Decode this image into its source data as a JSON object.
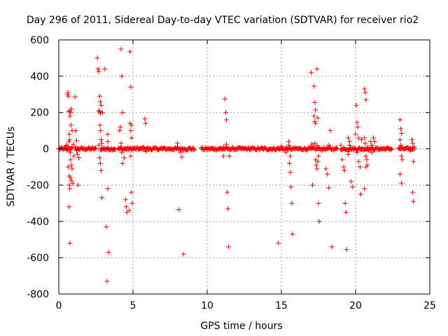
{
  "chart_data": {
    "type": "scatter",
    "title": "Day 296 of 2011, Sidereal Day-to-day VTEC variation (SDTVAR) for receiver rio2",
    "xlabel": "GPS time / hours",
    "ylabel": "SDTVAR / TECUs",
    "xlim": [
      0,
      25
    ],
    "ylim": [
      -800,
      600
    ],
    "xticks": [
      0,
      5,
      10,
      15,
      20,
      25
    ],
    "yticks": [
      -800,
      -600,
      -400,
      -200,
      0,
      200,
      400,
      600
    ],
    "grid": true,
    "marker": "+",
    "color": "#ff0000",
    "series": [
      {
        "name": "SDTVAR",
        "baseline_bands": [
          [
            0.0,
            0.9
          ],
          [
            1.1,
            2.5
          ],
          [
            2.8,
            3.8
          ],
          [
            4.0,
            6.0
          ],
          [
            6.0,
            9.2
          ],
          [
            9.6,
            12.5
          ],
          [
            12.5,
            16.8
          ],
          [
            16.8,
            18.8
          ],
          [
            19.0,
            20.5
          ],
          [
            20.5,
            22.5
          ],
          [
            22.9,
            24.0
          ]
        ],
        "points": [
          [
            0.5,
            20
          ],
          [
            0.6,
            300
          ],
          [
            0.62,
            310
          ],
          [
            0.65,
            290
          ],
          [
            0.7,
            205
          ],
          [
            0.72,
            210
          ],
          [
            0.75,
            180
          ],
          [
            0.8,
            200
          ],
          [
            0.82,
            130
          ],
          [
            0.85,
            220
          ],
          [
            0.9,
            100
          ],
          [
            0.7,
            80
          ],
          [
            0.75,
            50
          ],
          [
            0.78,
            -20
          ],
          [
            0.8,
            -60
          ],
          [
            0.85,
            -90
          ],
          [
            0.9,
            -110
          ],
          [
            0.65,
            -100
          ],
          [
            0.7,
            -150
          ],
          [
            0.72,
            -200
          ],
          [
            0.75,
            -220
          ],
          [
            0.8,
            -160
          ],
          [
            0.85,
            -175
          ],
          [
            0.95,
            -190
          ],
          [
            1.0,
            -40
          ],
          [
            0.7,
            -320
          ],
          [
            0.75,
            -520
          ],
          [
            0.55,
            -10
          ],
          [
            0.6,
            15
          ],
          [
            0.68,
            40
          ],
          [
            0.9,
            10
          ],
          [
            1.0,
            25
          ],
          [
            1.1,
            285
          ],
          [
            1.15,
            100
          ],
          [
            1.2,
            45
          ],
          [
            1.25,
            -30
          ],
          [
            1.3,
            -200
          ],
          [
            1.35,
            -50
          ],
          [
            1.2,
            -10
          ],
          [
            2.6,
            500
          ],
          [
            2.65,
            440
          ],
          [
            2.7,
            425
          ],
          [
            2.75,
            290
          ],
          [
            2.8,
            260
          ],
          [
            2.85,
            240
          ],
          [
            2.7,
            210
          ],
          [
            2.75,
            205
          ],
          [
            2.8,
            195
          ],
          [
            2.78,
            130
          ],
          [
            2.82,
            100
          ],
          [
            2.85,
            50
          ],
          [
            2.9,
            30
          ],
          [
            2.7,
            20
          ],
          [
            2.75,
            -50
          ],
          [
            2.8,
            -80
          ],
          [
            2.85,
            -120
          ],
          [
            2.9,
            -270
          ],
          [
            2.95,
            200
          ],
          [
            3.1,
            440
          ],
          [
            3.2,
            -430
          ],
          [
            3.25,
            -730
          ],
          [
            3.35,
            -570
          ],
          [
            3.3,
            -220
          ],
          [
            3.3,
            80
          ],
          [
            3.3,
            40
          ],
          [
            4.1,
            100
          ],
          [
            4.15,
            120
          ],
          [
            4.2,
            550
          ],
          [
            4.25,
            400
          ],
          [
            4.3,
            200
          ],
          [
            4.2,
            30
          ],
          [
            4.25,
            -20
          ],
          [
            4.3,
            -80
          ],
          [
            4.4,
            -50
          ],
          [
            4.5,
            -280
          ],
          [
            4.55,
            -320
          ],
          [
            4.6,
            -350
          ],
          [
            4.8,
            535
          ],
          [
            4.85,
            340
          ],
          [
            4.8,
            140
          ],
          [
            4.85,
            100
          ],
          [
            4.9,
            60
          ],
          [
            4.85,
            -40
          ],
          [
            4.9,
            -240
          ],
          [
            4.95,
            -300
          ],
          [
            4.75,
            -340
          ],
          [
            4.9,
            130
          ],
          [
            5.8,
            165
          ],
          [
            5.85,
            140
          ],
          [
            5.7,
            10
          ],
          [
            5.9,
            -15
          ],
          [
            8.0,
            30
          ],
          [
            8.1,
            -335
          ],
          [
            8.3,
            -45
          ],
          [
            8.4,
            -580
          ],
          [
            8.2,
            -20
          ],
          [
            11.1,
            -40
          ],
          [
            11.2,
            275
          ],
          [
            11.25,
            200
          ],
          [
            11.3,
            160
          ],
          [
            11.3,
            25
          ],
          [
            11.35,
            -240
          ],
          [
            11.4,
            -330
          ],
          [
            11.45,
            -540
          ],
          [
            11.5,
            -40
          ],
          [
            11.1,
            10
          ],
          [
            14.8,
            -520
          ],
          [
            15.0,
            15
          ],
          [
            15.3,
            -20
          ],
          [
            15.5,
            40
          ],
          [
            15.55,
            -80
          ],
          [
            15.6,
            -130
          ],
          [
            15.65,
            -210
          ],
          [
            15.7,
            -300
          ],
          [
            15.75,
            -470
          ],
          [
            15.5,
            20
          ],
          [
            15.6,
            -40
          ],
          [
            17.0,
            420
          ],
          [
            17.05,
            25
          ],
          [
            17.1,
            -200
          ],
          [
            17.2,
            345
          ],
          [
            17.25,
            255
          ],
          [
            17.3,
            215
          ],
          [
            17.2,
            180
          ],
          [
            17.25,
            150
          ],
          [
            17.3,
            140
          ],
          [
            17.25,
            30
          ],
          [
            17.3,
            -60
          ],
          [
            17.35,
            -90
          ],
          [
            17.4,
            -110
          ],
          [
            17.45,
            -70
          ],
          [
            17.4,
            440
          ],
          [
            17.45,
            170
          ],
          [
            17.5,
            -300
          ],
          [
            17.55,
            -400
          ],
          [
            17.4,
            20
          ],
          [
            17.5,
            -40
          ],
          [
            18.0,
            -110
          ],
          [
            18.1,
            -140
          ],
          [
            18.2,
            -215
          ],
          [
            18.3,
            100
          ],
          [
            18.4,
            -540
          ],
          [
            18.2,
            20
          ],
          [
            19.0,
            20
          ],
          [
            19.1,
            -60
          ],
          [
            19.2,
            -100
          ],
          [
            19.25,
            -120
          ],
          [
            19.3,
            -300
          ],
          [
            19.35,
            -350
          ],
          [
            19.4,
            -555
          ],
          [
            19.5,
            60
          ],
          [
            19.6,
            40
          ],
          [
            19.7,
            -180
          ],
          [
            19.8,
            -210
          ],
          [
            19.6,
            20
          ],
          [
            19.5,
            -30
          ],
          [
            20.0,
            80
          ],
          [
            20.05,
            240
          ],
          [
            20.1,
            145
          ],
          [
            20.15,
            120
          ],
          [
            20.2,
            60
          ],
          [
            20.1,
            -20
          ],
          [
            20.2,
            -70
          ],
          [
            20.3,
            -100
          ],
          [
            20.35,
            -250
          ],
          [
            20.4,
            50
          ],
          [
            20.6,
            330
          ],
          [
            20.65,
            310
          ],
          [
            20.7,
            270
          ],
          [
            20.6,
            60
          ],
          [
            20.65,
            30
          ],
          [
            20.7,
            -40
          ],
          [
            20.75,
            -60
          ],
          [
            20.8,
            -90
          ],
          [
            20.6,
            -220
          ],
          [
            20.7,
            -100
          ],
          [
            20.8,
            10
          ],
          [
            21.0,
            40
          ],
          [
            21.1,
            20
          ],
          [
            21.2,
            60
          ],
          [
            21.3,
            40
          ],
          [
            21.1,
            -20
          ],
          [
            23.0,
            160
          ],
          [
            23.05,
            110
          ],
          [
            23.1,
            85
          ],
          [
            23.0,
            50
          ],
          [
            23.05,
            20
          ],
          [
            23.1,
            -40
          ],
          [
            23.15,
            -60
          ],
          [
            23.0,
            -140
          ],
          [
            23.1,
            -190
          ],
          [
            23.8,
            50
          ],
          [
            23.85,
            30
          ],
          [
            23.9,
            -70
          ],
          [
            23.85,
            -240
          ],
          [
            23.9,
            -290
          ],
          [
            23.95,
            10
          ],
          [
            23.7,
            -10
          ]
        ]
      }
    ]
  }
}
